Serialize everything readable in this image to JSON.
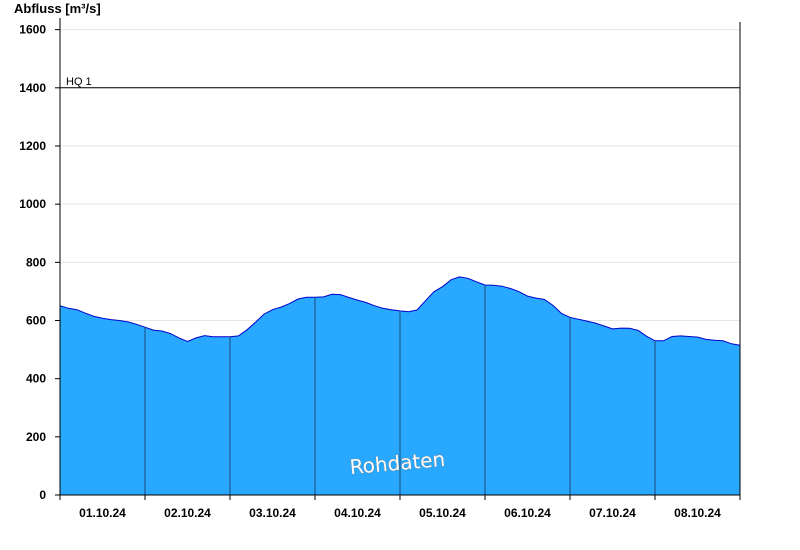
{
  "chart_data": {
    "type": "area",
    "ylabel": "Abfluss [m³/s]",
    "xlabel": "",
    "ylim": [
      0,
      1640
    ],
    "yticks": [
      0,
      200,
      400,
      600,
      800,
      1000,
      1200,
      1400,
      1600
    ],
    "ytick_labels": [
      "0",
      "200",
      "400",
      "600",
      "800",
      "1000",
      "1200",
      "1400",
      "1600"
    ],
    "xlim_days": [
      0,
      8
    ],
    "x_tick_labels": [
      "01.10.24",
      "02.10.24",
      "03.10.24",
      "04.10.24",
      "05.10.24",
      "06.10.24",
      "07.10.24",
      "08.10.24"
    ],
    "grid": true,
    "reference_line": {
      "label": "HQ 1",
      "value": 1400
    },
    "watermark": "Rohdaten",
    "colors": {
      "fill": "#29a8ff",
      "stroke": "#0000cc",
      "axis": "#000000",
      "grid": "#e6e6e6",
      "divider": "#1a4a7a"
    },
    "series": [
      {
        "values_per_3h": [
          650,
          642,
          637,
          625,
          614,
          608,
          603,
          600,
          595,
          587,
          577,
          567,
          564,
          555,
          540,
          528,
          540,
          548,
          544,
          544,
          544,
          547,
          568,
          594,
          622,
          637,
          646,
          658,
          674,
          680,
          680,
          681,
          690,
          689,
          679,
          670,
          662,
          651,
          642,
          637,
          633,
          630,
          636,
          668,
          699,
          716,
          740,
          750,
          745,
          733,
          722,
          721,
          718,
          710,
          699,
          684,
          677,
          672,
          652,
          624,
          611,
          604,
          598,
          591,
          581,
          571,
          574,
          573,
          566,
          546,
          530,
          530,
          545,
          547,
          545,
          543,
          535,
          532,
          530,
          520,
          515
        ]
      }
    ]
  }
}
